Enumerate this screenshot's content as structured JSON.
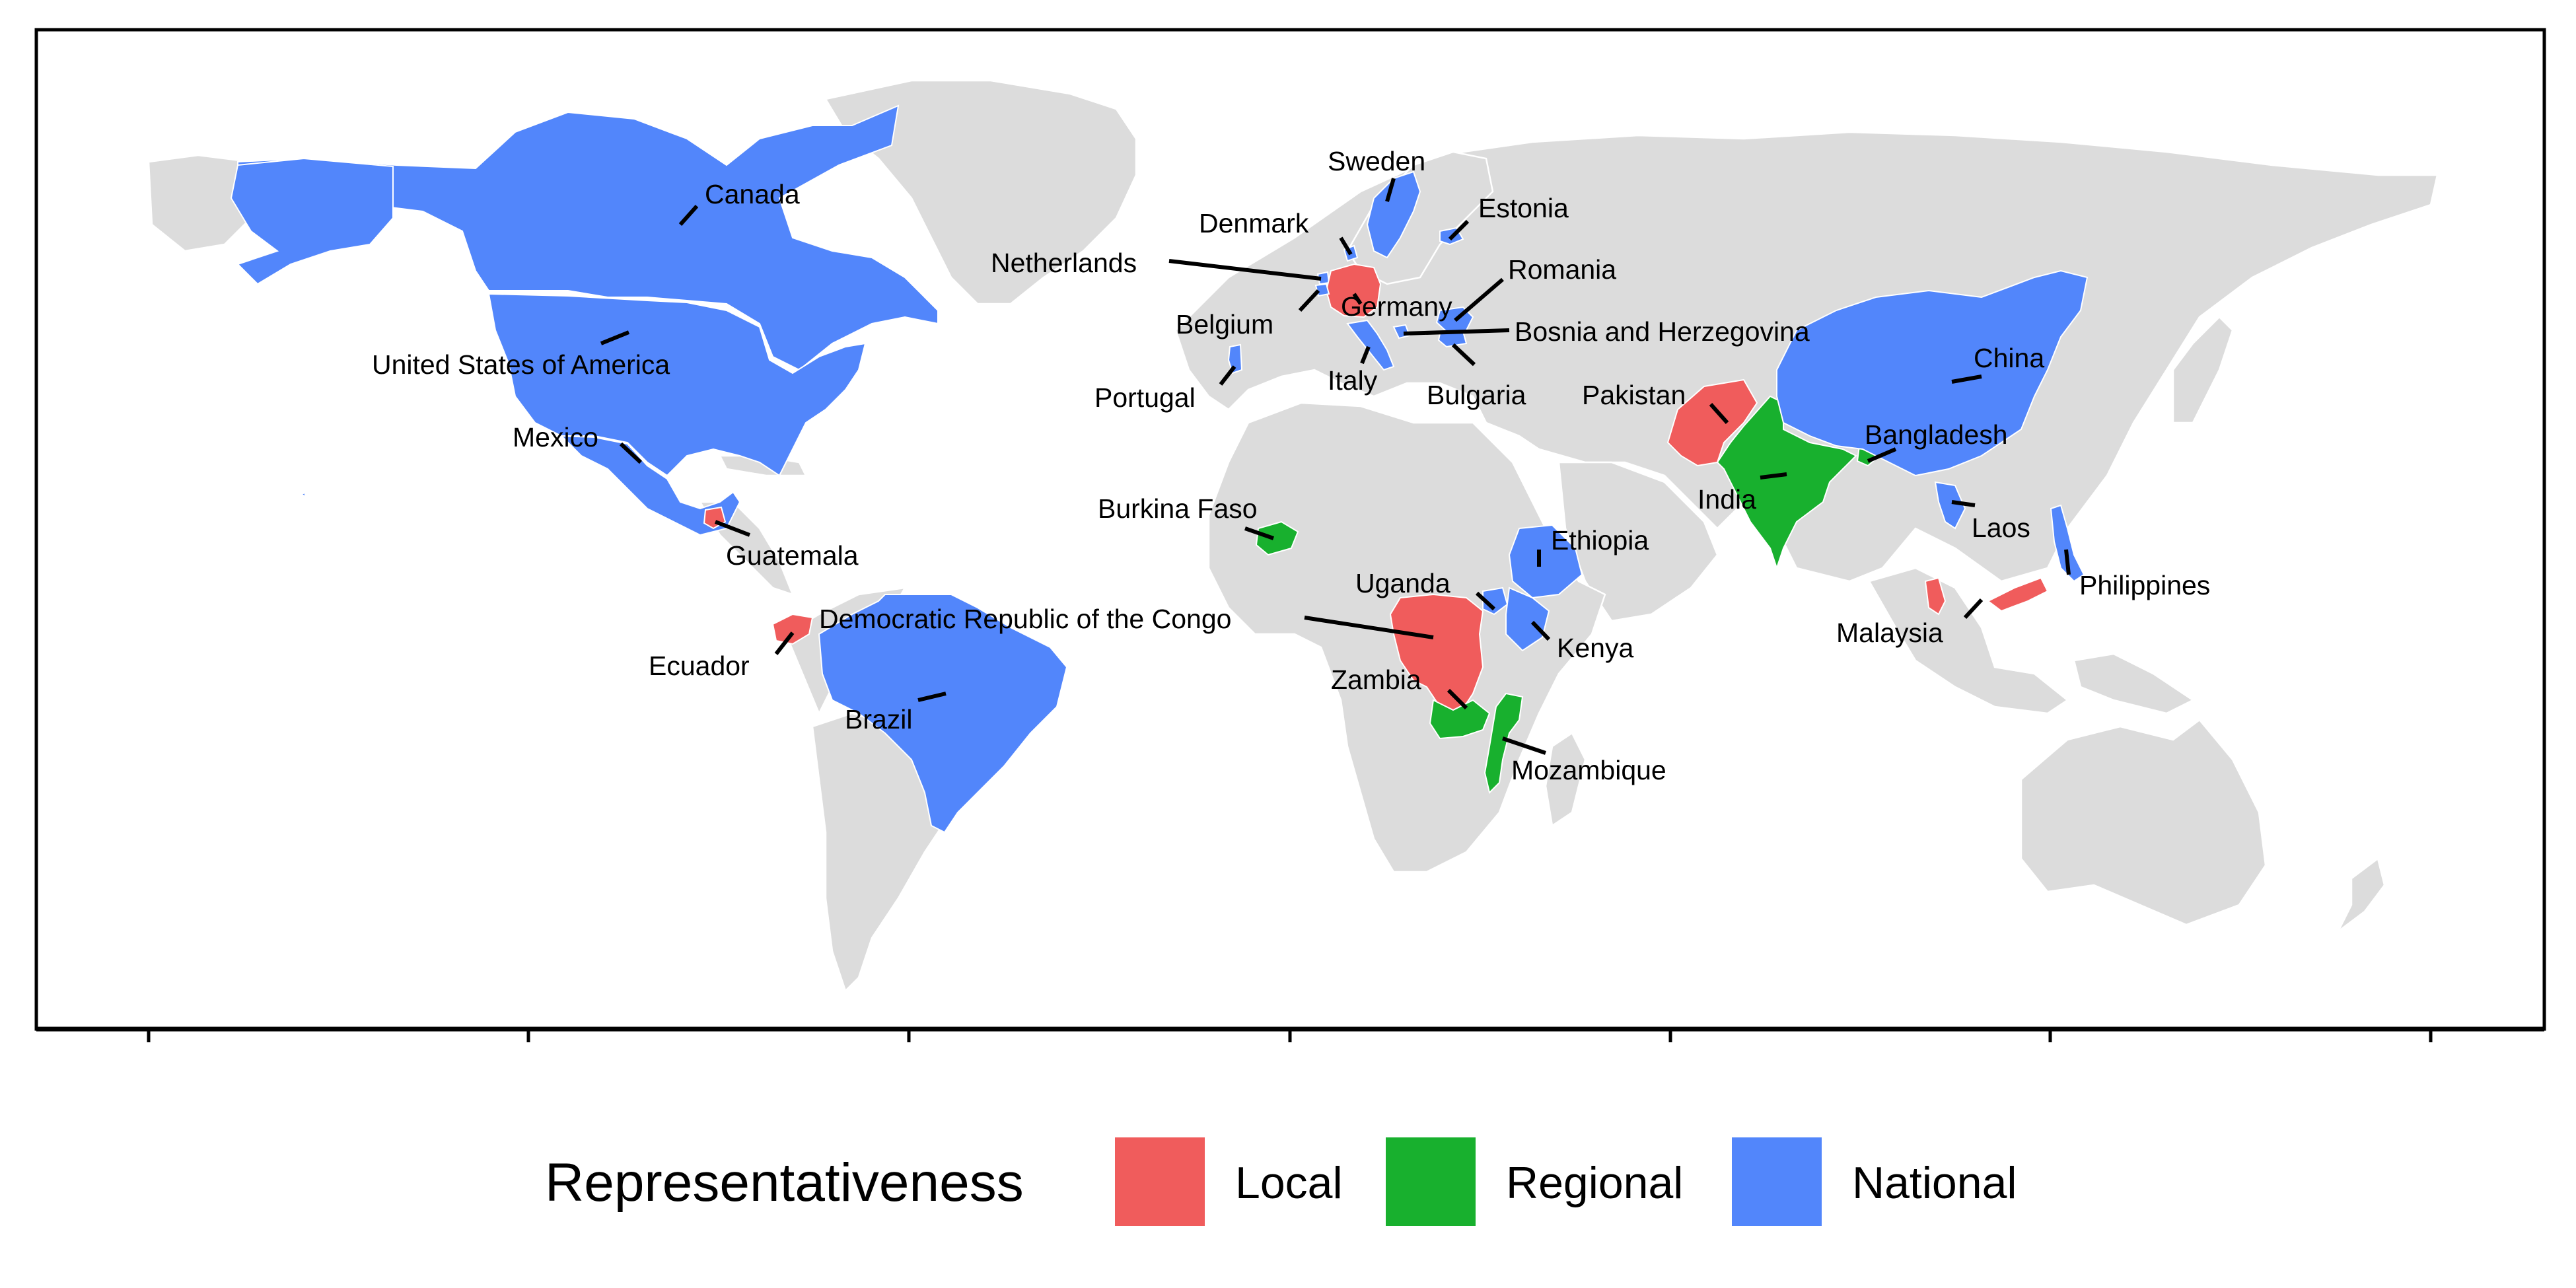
{
  "colors": {
    "Local": "#f05c5c",
    "Regional": "#18b02e",
    "National": "#5286fb",
    "background_land": "#dcdcdc"
  },
  "legend": {
    "title": "Representativeness",
    "items": [
      {
        "key": "Local",
        "label": "Local"
      },
      {
        "key": "Regional",
        "label": "Regional"
      },
      {
        "key": "National",
        "label": "National"
      }
    ]
  },
  "countries": [
    {
      "id": "canada",
      "name": "Canada",
      "level": "National"
    },
    {
      "id": "usa",
      "name": "United States of America",
      "level": "National"
    },
    {
      "id": "mexico",
      "name": "Mexico",
      "level": "National"
    },
    {
      "id": "guatemala",
      "name": "Guatemala",
      "level": "Local"
    },
    {
      "id": "ecuador",
      "name": "Ecuador",
      "level": "Local"
    },
    {
      "id": "brazil",
      "name": "Brazil",
      "level": "National"
    },
    {
      "id": "sweden",
      "name": "Sweden",
      "level": "National"
    },
    {
      "id": "estonia",
      "name": "Estonia",
      "level": "National"
    },
    {
      "id": "denmark",
      "name": "Denmark",
      "level": "National"
    },
    {
      "id": "netherlands",
      "name": "Netherlands",
      "level": "National"
    },
    {
      "id": "romania",
      "name": "Romania",
      "level": "National"
    },
    {
      "id": "germany",
      "name": "Germany",
      "level": "Local"
    },
    {
      "id": "belgium",
      "name": "Belgium",
      "level": "National"
    },
    {
      "id": "bosnia",
      "name": "Bosnia and Herzegovina",
      "level": "National"
    },
    {
      "id": "portugal",
      "name": "Portugal",
      "level": "National"
    },
    {
      "id": "italy",
      "name": "Italy",
      "level": "National"
    },
    {
      "id": "bulgaria",
      "name": "Bulgaria",
      "level": "National"
    },
    {
      "id": "burkina",
      "name": "Burkina Faso",
      "level": "Regional"
    },
    {
      "id": "ethiopia",
      "name": "Ethiopia",
      "level": "National"
    },
    {
      "id": "uganda",
      "name": "Uganda",
      "level": "National"
    },
    {
      "id": "drc",
      "name": "Democratic Republic of the Congo",
      "level": "Local"
    },
    {
      "id": "kenya",
      "name": "Kenya",
      "level": "National"
    },
    {
      "id": "zambia",
      "name": "Zambia",
      "level": "Regional"
    },
    {
      "id": "mozambique",
      "name": "Mozambique",
      "level": "Regional"
    },
    {
      "id": "pakistan",
      "name": "Pakistan",
      "level": "Local"
    },
    {
      "id": "china",
      "name": "China",
      "level": "National"
    },
    {
      "id": "bangladesh",
      "name": "Bangladesh",
      "level": "Regional"
    },
    {
      "id": "india",
      "name": "India",
      "level": "Regional"
    },
    {
      "id": "laos",
      "name": "Laos",
      "level": "National"
    },
    {
      "id": "philippines",
      "name": "Philippines",
      "level": "National"
    },
    {
      "id": "malaysia",
      "name": "Malaysia",
      "level": "Local"
    }
  ]
}
